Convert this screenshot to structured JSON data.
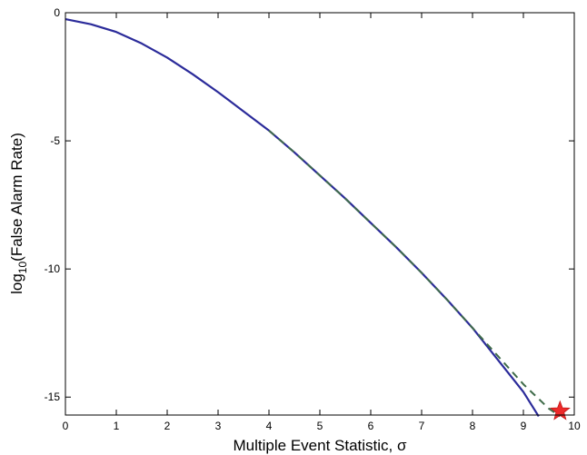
{
  "chart_data": {
    "type": "line",
    "xlabel": "Multiple Event Statistic, σ",
    "ylabel_prefix": "log",
    "ylabel_subscript": "10",
    "ylabel_suffix": "(False Alarm Rate)",
    "xlim": [
      0,
      10
    ],
    "ylim": [
      -15.7,
      0
    ],
    "xticks": [
      0,
      1,
      2,
      3,
      4,
      5,
      6,
      7,
      8,
      9,
      10
    ],
    "yticks": [
      0,
      -5,
      -10,
      -15
    ],
    "xtick_labels": [
      "0",
      "1",
      "2",
      "3",
      "4",
      "5",
      "6",
      "7",
      "8",
      "9",
      "10"
    ],
    "ytick_labels": [
      "0",
      "-5",
      "-10",
      "-15"
    ],
    "grid": false,
    "series": [
      {
        "style": "solid",
        "color": "#2b2b9a",
        "x": [
          0,
          0.5,
          1,
          1.5,
          2,
          2.5,
          3,
          3.5,
          4,
          4.5,
          5,
          5.5,
          6,
          6.5,
          7,
          7.5,
          8,
          8.5,
          9,
          9.3
        ],
        "y": [
          -0.25,
          -0.45,
          -0.75,
          -1.2,
          -1.75,
          -2.4,
          -3.1,
          -3.85,
          -4.6,
          -5.45,
          -6.35,
          -7.25,
          -8.2,
          -9.15,
          -10.15,
          -11.2,
          -12.3,
          -13.55,
          -14.8,
          -15.75
        ]
      },
      {
        "style": "dashed",
        "color": "#3f6b49",
        "x": [
          4,
          4.5,
          5,
          5.5,
          6,
          6.5,
          7,
          7.5,
          8,
          8.5,
          9,
          9.5,
          9.72
        ],
        "y": [
          -4.6,
          -5.45,
          -6.35,
          -7.25,
          -8.2,
          -9.15,
          -10.15,
          -11.2,
          -12.3,
          -13.4,
          -14.5,
          -15.45,
          -15.75
        ]
      }
    ],
    "marker": {
      "shape": "star",
      "color": "#ee2a2a",
      "x": 9.72,
      "y": -15.55
    }
  }
}
